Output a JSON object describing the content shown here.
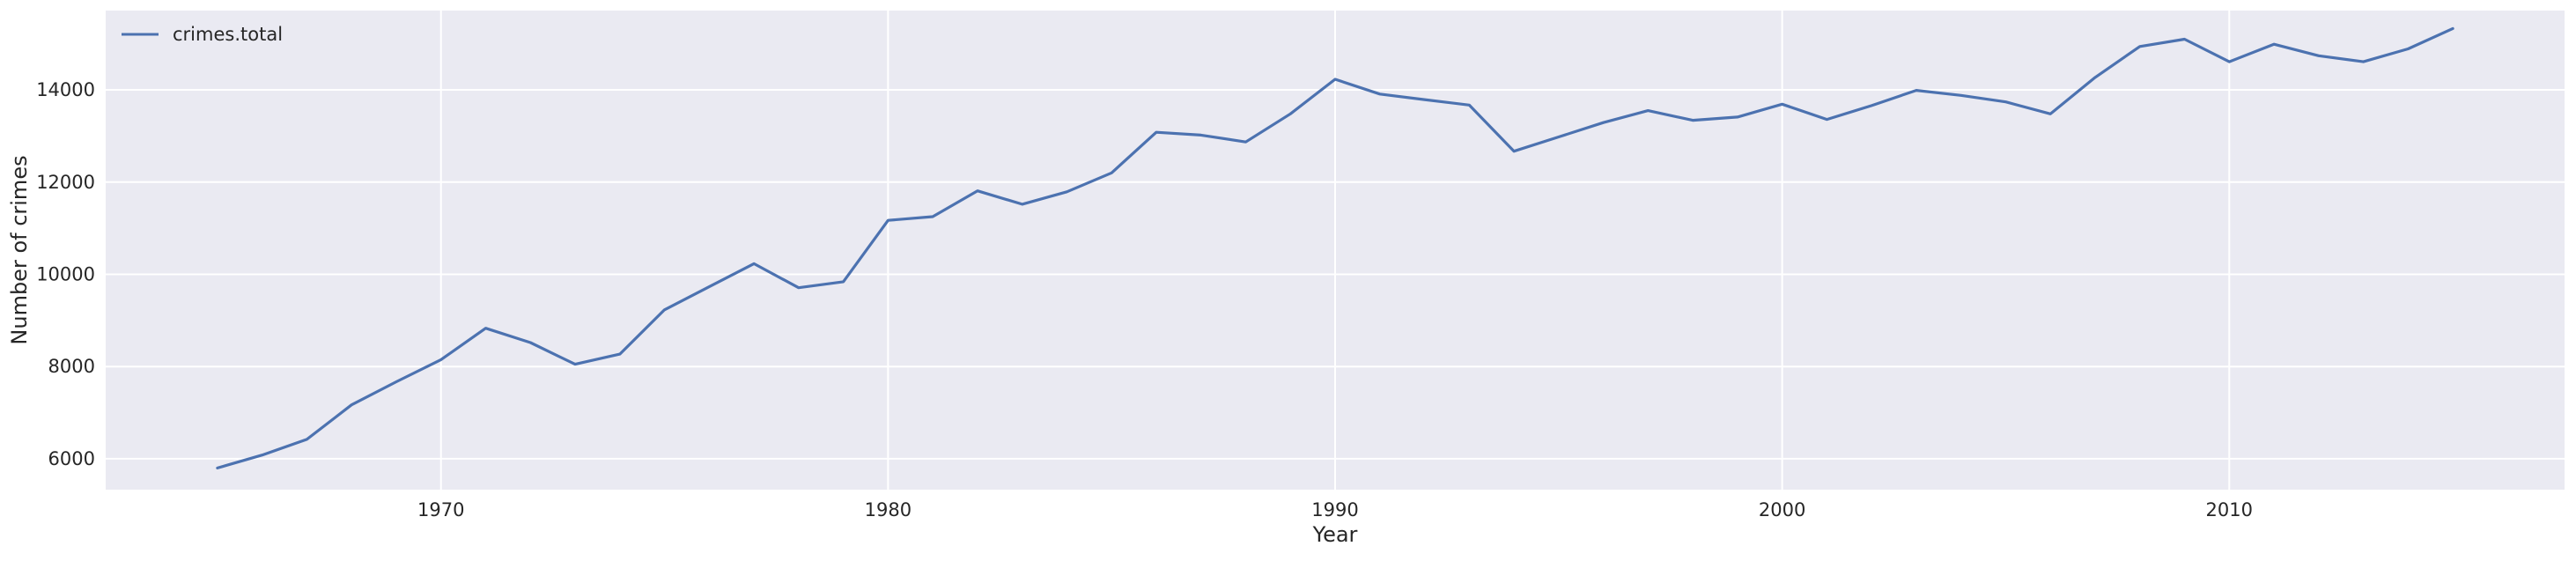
{
  "chart_data": {
    "type": "line",
    "xlabel": "Year",
    "ylabel": "Number of crimes",
    "xlim": [
      1962.5,
      2017.5
    ],
    "ylim": [
      5330,
      15720
    ],
    "x_ticks": [
      1970,
      1980,
      1990,
      2000,
      2010
    ],
    "y_ticks": [
      6000,
      8000,
      10000,
      12000,
      14000
    ],
    "grid": true,
    "legend_position": "top-left",
    "series": [
      {
        "name": "crimes.total",
        "color": "#4c72b0",
        "x": [
          1965,
          1966,
          1967,
          1968,
          1969,
          1970,
          1971,
          1972,
          1973,
          1974,
          1975,
          1976,
          1977,
          1978,
          1979,
          1980,
          1981,
          1982,
          1983,
          1984,
          1985,
          1986,
          1987,
          1988,
          1989,
          1990,
          1991,
          1992,
          1993,
          1994,
          1995,
          1996,
          1997,
          1998,
          1999,
          2000,
          2001,
          2002,
          2003,
          2004,
          2005,
          2006,
          2007,
          2008,
          2009,
          2010,
          2011,
          2012,
          2013,
          2014,
          2015
        ],
        "y": [
          5800,
          6080,
          6420,
          7170,
          7670,
          8150,
          8830,
          8520,
          8050,
          8270,
          9230,
          9730,
          10230,
          9710,
          9840,
          11170,
          11250,
          11810,
          11520,
          11790,
          12200,
          13080,
          13020,
          12870,
          13480,
          14230,
          13910,
          13790,
          13670,
          12670,
          12980,
          13290,
          13550,
          13340,
          13410,
          13690,
          13360,
          13660,
          13990,
          13880,
          13740,
          13480,
          14270,
          14940,
          15100,
          14610,
          14990,
          14740,
          14610,
          14890,
          15330
        ]
      }
    ]
  }
}
